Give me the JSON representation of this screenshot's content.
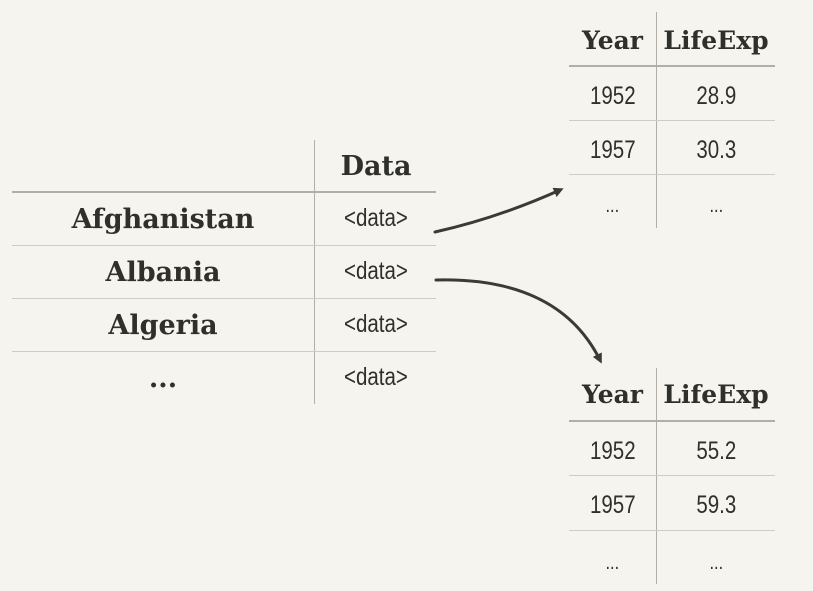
{
  "main_table": {
    "header": "Data",
    "rows": [
      {
        "country": "Afghanistan",
        "data": "<data>"
      },
      {
        "country": "Albania",
        "data": "<data>"
      },
      {
        "country": "Algeria",
        "data": "<data>"
      },
      {
        "country": "...",
        "data": "<data>"
      }
    ]
  },
  "nested_tables": [
    {
      "headers": [
        "Year",
        "LifeExp"
      ],
      "rows": [
        [
          "1952",
          "28.9"
        ],
        [
          "1957",
          "30.3"
        ],
        [
          "...",
          "..."
        ]
      ]
    },
    {
      "headers": [
        "Year",
        "LifeExp"
      ],
      "rows": [
        [
          "1952",
          "55.2"
        ],
        [
          "1957",
          "59.3"
        ],
        [
          "...",
          "..."
        ]
      ]
    }
  ],
  "colors": {
    "background": "#f6f4ee",
    "text": "#2f2f2c",
    "arrow": "#3a3a36"
  }
}
